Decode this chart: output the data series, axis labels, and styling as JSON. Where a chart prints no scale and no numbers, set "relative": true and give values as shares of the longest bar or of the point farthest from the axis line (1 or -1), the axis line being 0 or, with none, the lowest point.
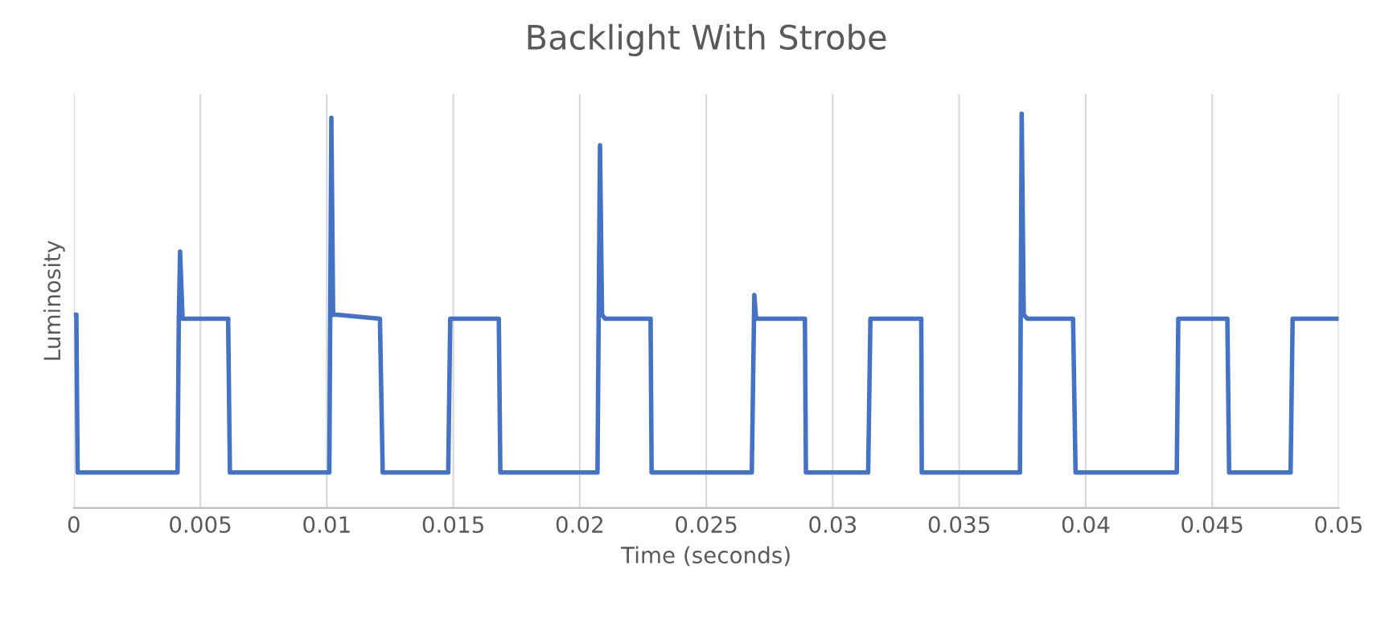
{
  "chart_data": {
    "type": "line",
    "title": "Backlight With Strobe",
    "xlabel": "Time (seconds)",
    "ylabel": "Luminosity",
    "relative": true,
    "grid": "x",
    "xlim": [
      0,
      0.05
    ],
    "xticks": [
      0,
      0.005,
      0.01,
      0.015,
      0.02,
      0.025,
      0.03,
      0.035,
      0.04,
      0.045,
      0.05
    ],
    "series": [
      {
        "color": "#4472c4",
        "x": [
          0,
          0.0001,
          0.00015,
          0.0041,
          0.00415,
          0.0042,
          0.0043,
          0.0061,
          0.00617,
          0.0101,
          0.01018,
          0.01025,
          0.0104,
          0.0121,
          0.01221,
          0.0148,
          0.01488,
          0.0168,
          0.01686,
          0.0207,
          0.0208,
          0.02088,
          0.021,
          0.0228,
          0.02284,
          0.0268,
          0.0269,
          0.02697,
          0.0271,
          0.0289,
          0.02894,
          0.0314,
          0.03149,
          0.0335,
          0.03352,
          0.0374,
          0.03747,
          0.03755,
          0.0377,
          0.0395,
          0.0396,
          0.0436,
          0.04366,
          0.0456,
          0.04567,
          0.0481,
          0.04818,
          0.05
        ],
        "values": [
          0.49,
          0.49,
          0.09,
          0.09,
          0.48,
          0.65,
          0.48,
          0.48,
          0.09,
          0.09,
          0.99,
          0.49,
          0.49,
          0.48,
          0.09,
          0.09,
          0.48,
          0.48,
          0.09,
          0.09,
          0.92,
          0.49,
          0.48,
          0.48,
          0.09,
          0.09,
          0.54,
          0.48,
          0.48,
          0.48,
          0.09,
          0.09,
          0.48,
          0.48,
          0.09,
          0.09,
          1,
          0.49,
          0.48,
          0.48,
          0.09,
          0.09,
          0.48,
          0.48,
          0.09,
          0.09,
          0.48,
          0.48
        ]
      }
    ]
  }
}
